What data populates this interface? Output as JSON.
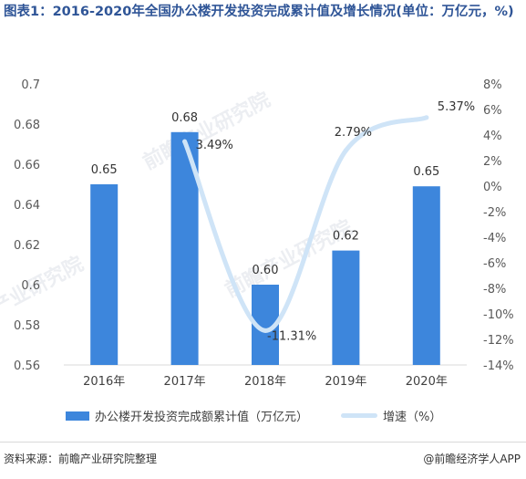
{
  "title": "图表1：2016-2020年全国办公楼开发投资完成累计值及增长情况(单位：万亿元，%)",
  "source": "资料来源：前瞻产业研究院整理",
  "brand": "@前瞻经济学人APP",
  "watermark": "前瞻产业研究院",
  "colors": {
    "bar": "#3d86dc",
    "line": "#cfe4f7",
    "title": "#2f5597"
  },
  "chart_data": {
    "type": "bar",
    "categories": [
      "2016年",
      "2017年",
      "2018年",
      "2019年",
      "2020年"
    ],
    "series": [
      {
        "name": "办公楼开发投资完成额累计值（万亿元）",
        "type": "bar",
        "axis": "left",
        "values": [
          0.65,
          0.676,
          0.6,
          0.617,
          0.649
        ],
        "labels": [
          "0.65",
          "0.68",
          "0.60",
          "0.62",
          "0.65"
        ]
      },
      {
        "name": "增速（%）",
        "type": "line",
        "axis": "right",
        "x": [
          "2017年",
          "2018年",
          "2019年",
          "2020年"
        ],
        "values": [
          3.49,
          -11.31,
          2.79,
          5.37
        ],
        "labels": [
          "3.49%",
          "-11.31%",
          "2.79%",
          "5.37%"
        ]
      }
    ],
    "left_axis": {
      "ylim": [
        0.56,
        0.7
      ],
      "ticks": [
        "0.56",
        "0.58",
        "0.6",
        "0.62",
        "0.64",
        "0.66",
        "0.68",
        "0.7"
      ]
    },
    "right_axis": {
      "ylim": [
        -14,
        8
      ],
      "ticks": [
        "-14%",
        "-12%",
        "-10%",
        "-8%",
        "-6%",
        "-4%",
        "-2%",
        "0%",
        "2%",
        "4%",
        "6%",
        "8%"
      ]
    },
    "grid": false,
    "legend_position": "bottom"
  }
}
